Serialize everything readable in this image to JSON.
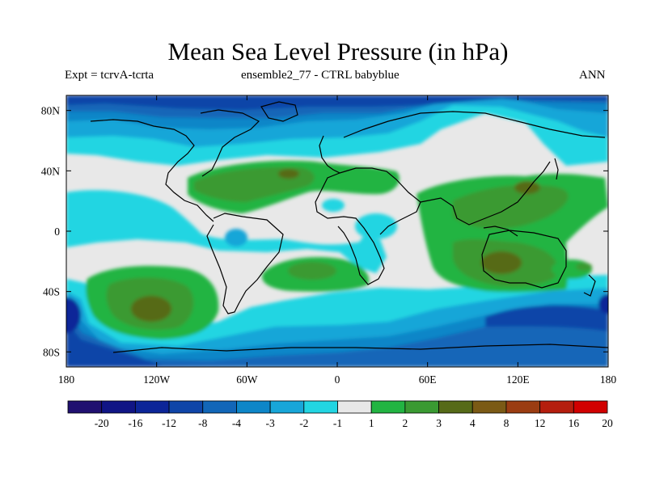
{
  "header": {
    "title": "Mean Sea Level Pressure (in hPa)",
    "subtitle_left": "Expt = tcrvA-tcrta",
    "subtitle_center": "ensemble2_77 - CTRL babyblue",
    "subtitle_right": "ANN"
  },
  "map": {
    "lat_ticks": [
      "80N",
      "40N",
      "0",
      "40S",
      "80S"
    ],
    "lon_ticks": [
      "180",
      "120W",
      "60W",
      "0",
      "60E",
      "120E",
      "180"
    ],
    "fill_levels": [
      {
        "name": "gt20",
        "color": "#d10000"
      },
      {
        "name": "le-20",
        "color": "#0f0550"
      }
    ]
  },
  "legend": {
    "labels": [
      "-20",
      "-16",
      "-12",
      "-8",
      "-4",
      "-3",
      "-2",
      "-1",
      "1",
      "2",
      "3",
      "4",
      "8",
      "12",
      "16",
      "20"
    ],
    "colors": [
      "#201070",
      "#101585",
      "#0c2598",
      "#0f45a8",
      "#1266b8",
      "#0d86c8",
      "#18a6d8",
      "#22d5e2",
      "#e8e8e8",
      "#22b442",
      "#3a9a32",
      "#566a18",
      "#7b5a15",
      "#9b3d12",
      "#b51e0e",
      "#d10000"
    ]
  }
}
